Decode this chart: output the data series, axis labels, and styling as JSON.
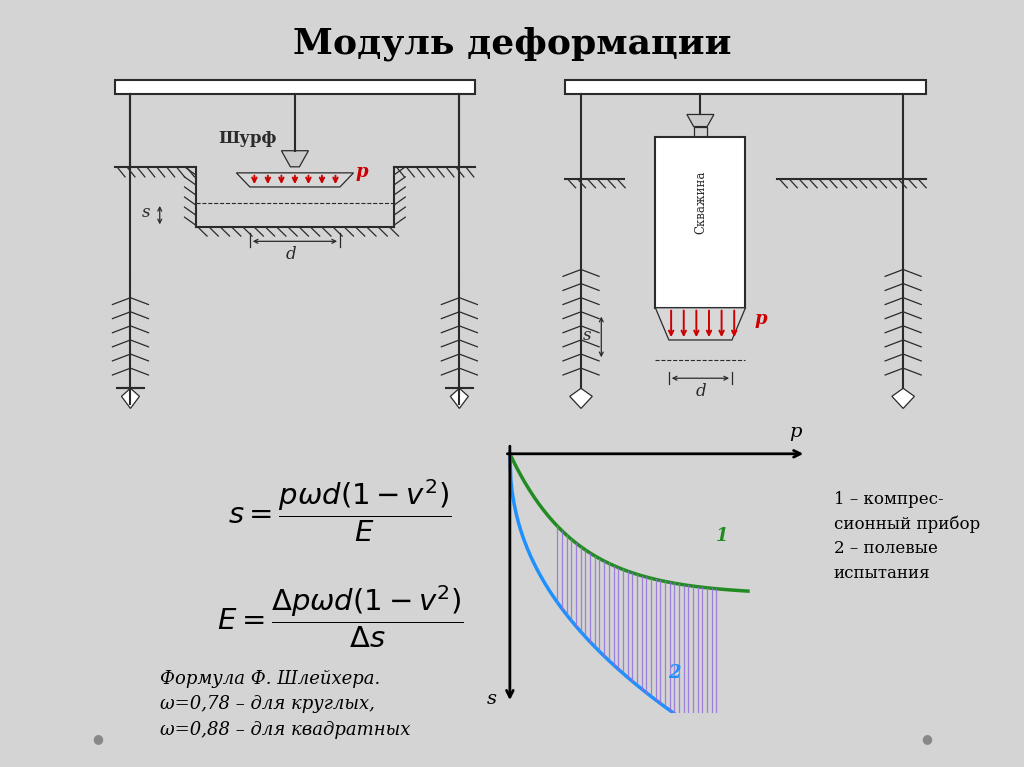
{
  "title": "Модуль деформации",
  "title_fontsize": 26,
  "slide_bg": "#d4d4d4",
  "diagram_bg": "#ffffff",
  "bottom_bg": "#ffffff",
  "gray": "#2a2a2a",
  "light_gray": "#aaaaaa",
  "red": "#cc0000",
  "curve1_color": "#228B22",
  "curve2_color": "#1E90FF",
  "hatch_color": "#9370DB",
  "schurff_label": "Шурф",
  "skvajina_label": "Скважина",
  "footnote_line1": "Формула Ф. Шлейхера.",
  "footnote_line2": "ω=0,78 – для круглых,",
  "footnote_line3": "ω=0,88 – для квадратных",
  "legend_line1": "1 – компрес-",
  "legend_line2": "сионный прибор",
  "legend_line3": "2 – полевые",
  "legend_line4": "испытания",
  "p_label": "p",
  "s_label": "s",
  "d_label": "d"
}
